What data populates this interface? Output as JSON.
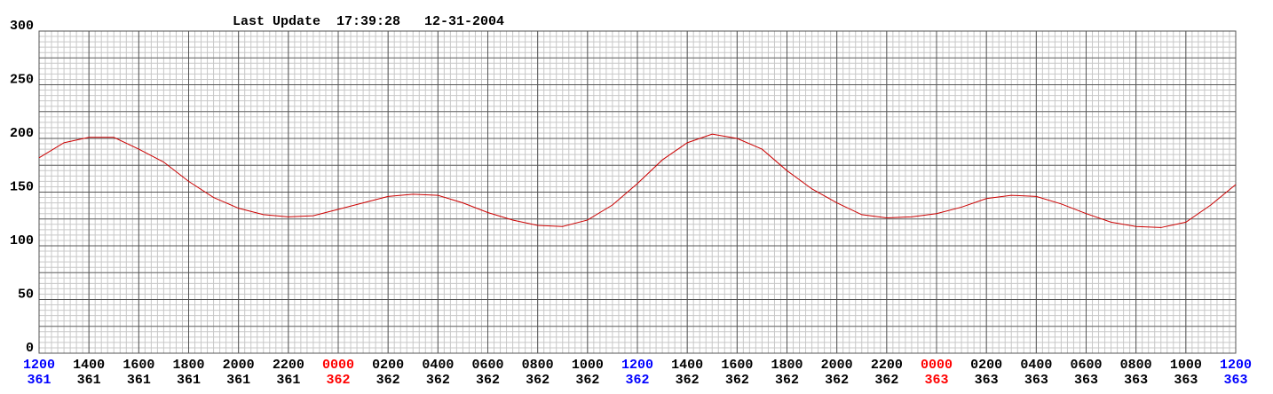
{
  "chart_data": {
    "type": "line",
    "title": "Last Update  17:39:28   12-31-2004",
    "x": [
      0,
      1,
      2,
      3,
      4,
      5,
      6,
      7,
      8,
      9,
      10,
      11,
      12,
      13,
      14,
      15,
      16,
      17,
      18,
      19,
      20,
      21,
      22,
      23,
      24,
      25,
      26,
      27,
      28,
      29,
      30,
      31,
      32,
      33,
      34,
      35,
      36,
      37,
      38,
      39,
      40,
      41,
      42,
      43,
      44,
      45,
      46,
      47,
      48
    ],
    "series": [
      {
        "color": "#cc0000",
        "values": [
          182,
          196,
          201,
          201,
          190,
          178,
          160,
          145,
          135,
          129,
          127,
          128,
          134,
          140,
          146,
          148,
          147,
          140,
          131,
          124,
          119,
          118,
          124,
          138,
          158,
          180,
          196,
          204,
          200,
          190,
          170,
          153,
          140,
          129,
          126,
          127,
          130,
          136,
          144,
          147,
          146,
          139,
          130,
          122,
          118,
          117,
          122,
          138,
          157
        ]
      }
    ],
    "xlim": [
      0,
      48
    ],
    "xticks": [
      {
        "value": 0,
        "label": "1200",
        "day": "361",
        "color": "#0000ff"
      },
      {
        "value": 2,
        "label": "1400",
        "day": "361",
        "color": "#000000"
      },
      {
        "value": 4,
        "label": "1600",
        "day": "361",
        "color": "#000000"
      },
      {
        "value": 6,
        "label": "1800",
        "day": "361",
        "color": "#000000"
      },
      {
        "value": 8,
        "label": "2000",
        "day": "361",
        "color": "#000000"
      },
      {
        "value": 10,
        "label": "2200",
        "day": "361",
        "color": "#000000"
      },
      {
        "value": 12,
        "label": "0000",
        "day": "362",
        "color": "#ff0000"
      },
      {
        "value": 14,
        "label": "0200",
        "day": "362",
        "color": "#000000"
      },
      {
        "value": 16,
        "label": "0400",
        "day": "362",
        "color": "#000000"
      },
      {
        "value": 18,
        "label": "0600",
        "day": "362",
        "color": "#000000"
      },
      {
        "value": 20,
        "label": "0800",
        "day": "362",
        "color": "#000000"
      },
      {
        "value": 22,
        "label": "1000",
        "day": "362",
        "color": "#000000"
      },
      {
        "value": 24,
        "label": "1200",
        "day": "362",
        "color": "#0000ff"
      },
      {
        "value": 26,
        "label": "1400",
        "day": "362",
        "color": "#000000"
      },
      {
        "value": 28,
        "label": "1600",
        "day": "362",
        "color": "#000000"
      },
      {
        "value": 30,
        "label": "1800",
        "day": "362",
        "color": "#000000"
      },
      {
        "value": 32,
        "label": "2000",
        "day": "362",
        "color": "#000000"
      },
      {
        "value": 34,
        "label": "2200",
        "day": "362",
        "color": "#000000"
      },
      {
        "value": 36,
        "label": "0000",
        "day": "363",
        "color": "#ff0000"
      },
      {
        "value": 38,
        "label": "0200",
        "day": "363",
        "color": "#000000"
      },
      {
        "value": 40,
        "label": "0400",
        "day": "363",
        "color": "#000000"
      },
      {
        "value": 42,
        "label": "0600",
        "day": "363",
        "color": "#000000"
      },
      {
        "value": 44,
        "label": "0800",
        "day": "363",
        "color": "#000000"
      },
      {
        "value": 46,
        "label": "1000",
        "day": "363",
        "color": "#000000"
      },
      {
        "value": 48,
        "label": "1200",
        "day": "363",
        "color": "#0000ff"
      }
    ],
    "ylim": [
      0,
      300
    ],
    "yticks": [
      0,
      50,
      100,
      150,
      200,
      250,
      300
    ],
    "grid": true,
    "y_major_step": 25,
    "y_minor_step": 5,
    "x_minor_step": 0.25
  }
}
